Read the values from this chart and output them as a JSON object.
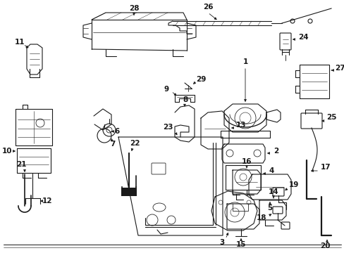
{
  "bg_color": "#ffffff",
  "line_color": "#1a1a1a",
  "fig_width": 4.89,
  "fig_height": 3.6,
  "dpi": 100,
  "border_color": "#aaaaaa"
}
